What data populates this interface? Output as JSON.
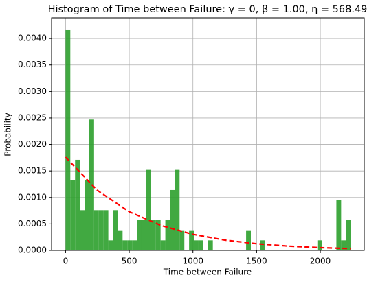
{
  "chart_data": {
    "type": "histogram",
    "title": "Histogram of Time between Failure:  γ = 0,  β = 1.00,  η = 568.49",
    "x_label": "Time between Failure",
    "y_label": "Probability",
    "bins": [
      0,
      37.3,
      74.6,
      111.9,
      149.2,
      186.5,
      223.8,
      261.1,
      298.4,
      335.7,
      373,
      410.3,
      447.6,
      484.9,
      522.2,
      559.5,
      596.8,
      634.1,
      671.4,
      708.7,
      746,
      783.3,
      820.6,
      857.9,
      895.2,
      932.5,
      969.8,
      1007.1,
      1044.4,
      1081.7,
      1119,
      1156.3,
      1193.6,
      1230.9,
      1268.2,
      1305.5,
      1342.8,
      1380.1,
      1417.4,
      1454.7,
      1492,
      1529.3,
      1566.6,
      1603.9,
      1641.2,
      1678.5,
      1715.8,
      1753.1,
      1790.4,
      1827.7,
      1865,
      1902.3,
      1939.6,
      1976.9,
      2014.2,
      2051.5,
      2088.8,
      2126.1,
      2163.4,
      2200.7,
      2238
    ],
    "values": [
      0.00417,
      0.00133,
      0.00171,
      0.00076,
      0.00133,
      0.00247,
      0.00076,
      0.00076,
      0.00076,
      0.00019,
      0.00076,
      0.00038,
      0.00019,
      0.00019,
      0.00019,
      0.00057,
      0.00057,
      0.00152,
      0.00057,
      0.00057,
      0.00019,
      0.00057,
      0.00114,
      0.00152,
      0.00038,
      0,
      0.00038,
      0.00019,
      0.00019,
      0,
      0.00019,
      0,
      0,
      0,
      0,
      0,
      0,
      0,
      0.00038,
      0,
      0,
      0.00019,
      0,
      0,
      0,
      0,
      0,
      0,
      0,
      0,
      0,
      0,
      0,
      0.00019,
      0,
      0,
      0,
      0.00095,
      0.00019,
      0.00057
    ],
    "color": "#2ca02c",
    "fit": {
      "x": [
        0,
        250,
        500,
        750,
        1000,
        1250,
        1500,
        1750,
        2000,
        2238
      ],
      "values": [
        0.001759,
        0.001133,
        0.00073,
        0.00047,
        0.000303,
        0.000195,
        0.000126,
        8.1e-05,
        5.22e-05,
        3.43e-05
      ],
      "color": "#ff0000"
    },
    "xlim": [
      -110,
      2345
    ],
    "ylim": [
      0,
      0.00439
    ],
    "xticks": [
      0,
      500,
      1000,
      1500,
      2000
    ],
    "yticks": [
      {
        "value": 0,
        "label": "0.0000"
      },
      {
        "value": 0.0005,
        "label": "0.0005"
      },
      {
        "value": 0.001,
        "label": "0.0010"
      },
      {
        "value": 0.0015,
        "label": "0.0015"
      },
      {
        "value": 0.002,
        "label": "0.0020"
      },
      {
        "value": 0.0025,
        "label": "0.0025"
      },
      {
        "value": 0.003,
        "label": "0.0030"
      },
      {
        "value": 0.0035,
        "label": "0.0035"
      },
      {
        "value": 0.004,
        "label": "0.0040"
      }
    ],
    "grid": true
  }
}
